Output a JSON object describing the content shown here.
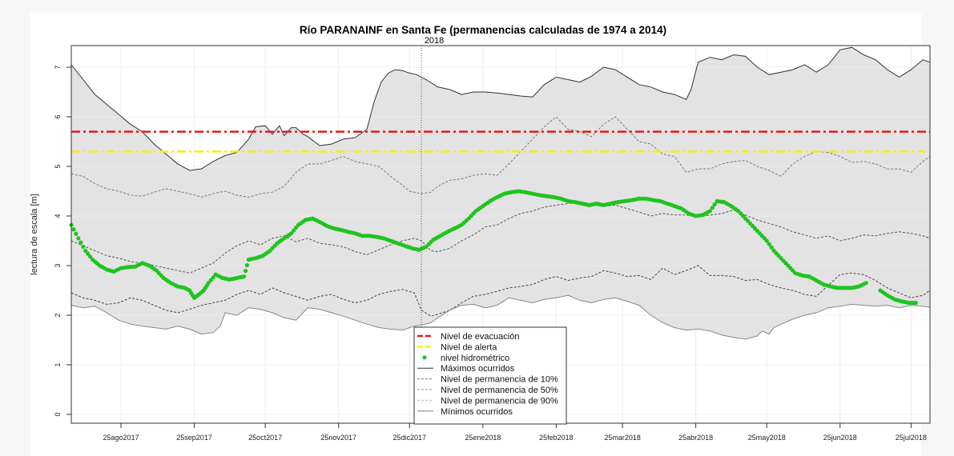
{
  "chart_data": {
    "type": "line",
    "title": "Río PARANAINF en Santa Fe (permanencias calculadas de 1974 a 2014)",
    "subtitle": "2018",
    "xlabel": "",
    "ylabel": "lectura de escala [m]",
    "x_unit": "days since 04ago2017",
    "xlim": [
      0,
      363
    ],
    "ylim": [
      -0.2,
      7.4
    ],
    "y_ticks": [
      0,
      1,
      2,
      3,
      4,
      5,
      6,
      7
    ],
    "x_ticks": [
      {
        "day": 21,
        "label": "25ago2017"
      },
      {
        "day": 52,
        "label": "25sep2017"
      },
      {
        "day": 82,
        "label": "25oct2017"
      },
      {
        "day": 113,
        "label": "25nov2017"
      },
      {
        "day": 143,
        "label": "25dic2017"
      },
      {
        "day": 174,
        "label": "25ene2018"
      },
      {
        "day": 205,
        "label": "25feb2018"
      },
      {
        "day": 233,
        "label": "25mar2018"
      },
      {
        "day": 264,
        "label": "25abr2018"
      },
      {
        "day": 294,
        "label": "25may2018"
      },
      {
        "day": 325,
        "label": "25jun2018"
      },
      {
        "day": 355,
        "label": "25jul2018"
      }
    ],
    "grid": true,
    "year_marker": {
      "day": 148,
      "label": "2018"
    },
    "thresholds": [
      {
        "name": "Nivel de evacuación",
        "value": 5.7,
        "color": "#e31a1c"
      },
      {
        "name": "Nivel de alerta",
        "value": 5.3,
        "color": "#f2f20a"
      }
    ],
    "series": [
      {
        "name": "Máximos ocurridos",
        "style": "solid",
        "color": "#333333",
        "x": [
          0,
          5,
          10,
          15,
          20,
          25,
          30,
          35,
          40,
          45,
          50,
          55,
          60,
          65,
          70,
          75,
          78,
          82,
          85,
          88,
          90,
          93,
          95,
          98,
          100,
          105,
          110,
          115,
          120,
          125,
          128,
          131,
          134,
          137,
          140,
          143,
          146,
          150,
          155,
          160,
          165,
          170,
          175,
          180,
          185,
          190,
          195,
          200,
          205,
          210,
          215,
          220,
          225,
          230,
          235,
          240,
          245,
          250,
          255,
          260,
          262,
          265,
          270,
          275,
          280,
          285,
          290,
          295,
          300,
          305,
          310,
          315,
          320,
          325,
          330,
          335,
          340,
          345,
          350,
          355,
          360,
          363
        ],
        "y": [
          7.05,
          6.75,
          6.45,
          6.25,
          6.05,
          5.85,
          5.7,
          5.45,
          5.25,
          5.05,
          4.92,
          4.95,
          5.1,
          5.22,
          5.28,
          5.55,
          5.8,
          5.82,
          5.65,
          5.82,
          5.62,
          5.78,
          5.78,
          5.65,
          5.6,
          5.42,
          5.45,
          5.55,
          5.58,
          5.75,
          6.3,
          6.7,
          6.88,
          6.95,
          6.93,
          6.88,
          6.85,
          6.75,
          6.6,
          6.55,
          6.45,
          6.5,
          6.5,
          6.48,
          6.45,
          6.42,
          6.4,
          6.65,
          6.8,
          6.75,
          6.7,
          6.82,
          7.0,
          6.95,
          6.8,
          6.65,
          6.6,
          6.5,
          6.45,
          6.35,
          6.55,
          7.1,
          7.2,
          7.15,
          7.25,
          7.22,
          7.0,
          6.85,
          6.9,
          6.95,
          7.05,
          6.9,
          7.05,
          7.35,
          7.4,
          7.25,
          7.15,
          6.95,
          6.8,
          6.95,
          7.15,
          7.1
        ]
      },
      {
        "name": "Nivel de permanencia de 10%",
        "style": "dashed",
        "color": "#7a7a7a",
        "x": [
          0,
          5,
          10,
          15,
          20,
          25,
          30,
          35,
          40,
          45,
          50,
          55,
          60,
          65,
          70,
          75,
          80,
          85,
          90,
          95,
          100,
          105,
          110,
          115,
          120,
          125,
          130,
          135,
          140,
          143,
          148,
          152,
          155,
          160,
          165,
          170,
          175,
          180,
          185,
          190,
          195,
          200,
          205,
          210,
          215,
          220,
          225,
          230,
          235,
          240,
          245,
          250,
          255,
          260,
          265,
          270,
          275,
          280,
          285,
          290,
          295,
          300,
          305,
          310,
          315,
          320,
          325,
          330,
          335,
          340,
          345,
          350,
          355,
          360,
          363
        ],
        "y": [
          4.85,
          4.8,
          4.65,
          4.55,
          4.5,
          4.42,
          4.4,
          4.48,
          4.55,
          4.5,
          4.45,
          4.38,
          4.45,
          4.5,
          4.42,
          4.38,
          4.45,
          4.48,
          4.6,
          4.88,
          5.05,
          5.05,
          5.12,
          5.2,
          5.1,
          5.05,
          5.0,
          4.8,
          4.62,
          4.5,
          4.45,
          4.48,
          4.6,
          4.72,
          4.75,
          4.82,
          4.85,
          4.82,
          5.05,
          5.3,
          5.55,
          5.8,
          6.0,
          5.75,
          5.7,
          5.6,
          5.85,
          6.0,
          5.75,
          5.5,
          5.45,
          5.25,
          5.2,
          4.88,
          4.95,
          4.95,
          5.05,
          5.1,
          5.12,
          5.0,
          4.92,
          4.8,
          5.05,
          5.2,
          5.3,
          5.28,
          5.2,
          5.08,
          5.1,
          5.05,
          4.95,
          4.95,
          4.88,
          5.1,
          5.2
        ]
      },
      {
        "name": "Nivel de permanencia de 50%",
        "style": "dashed",
        "color": "#555555",
        "x": [
          0,
          5,
          10,
          15,
          20,
          25,
          30,
          35,
          40,
          45,
          50,
          55,
          60,
          65,
          70,
          75,
          80,
          85,
          90,
          95,
          100,
          105,
          110,
          115,
          120,
          125,
          130,
          135,
          140,
          145,
          148,
          152,
          155,
          160,
          165,
          170,
          175,
          180,
          185,
          190,
          195,
          200,
          205,
          210,
          215,
          220,
          225,
          230,
          235,
          240,
          245,
          250,
          255,
          260,
          265,
          270,
          275,
          280,
          285,
          290,
          295,
          300,
          305,
          310,
          315,
          320,
          325,
          330,
          335,
          340,
          345,
          350,
          355,
          360,
          363
        ],
        "y": [
          3.5,
          3.4,
          3.3,
          3.2,
          3.15,
          3.08,
          3.05,
          3.0,
          2.95,
          2.9,
          2.85,
          2.95,
          3.05,
          3.25,
          3.4,
          3.5,
          3.42,
          3.55,
          3.6,
          3.48,
          3.55,
          3.45,
          3.42,
          3.38,
          3.28,
          3.22,
          3.32,
          3.42,
          3.5,
          3.55,
          3.5,
          3.3,
          3.28,
          3.35,
          3.5,
          3.62,
          3.78,
          3.82,
          3.95,
          4.05,
          4.1,
          4.18,
          4.22,
          4.25,
          4.28,
          4.22,
          4.2,
          4.22,
          4.15,
          4.08,
          4.0,
          4.05,
          4.02,
          4.02,
          3.98,
          4.02,
          4.05,
          4.12,
          4.02,
          3.92,
          3.85,
          3.78,
          3.68,
          3.62,
          3.55,
          3.6,
          3.5,
          3.55,
          3.62,
          3.6,
          3.65,
          3.68,
          3.65,
          3.6,
          3.55
        ]
      },
      {
        "name": "Nivel de permanencia de 90%",
        "style": "dashed",
        "color": "#444444",
        "x": [
          0,
          5,
          10,
          15,
          20,
          25,
          30,
          35,
          40,
          45,
          50,
          55,
          60,
          65,
          70,
          75,
          80,
          85,
          90,
          95,
          100,
          105,
          110,
          115,
          120,
          125,
          130,
          135,
          140,
          145,
          148,
          152,
          155,
          160,
          165,
          170,
          175,
          180,
          185,
          190,
          195,
          200,
          205,
          210,
          215,
          220,
          225,
          230,
          235,
          240,
          245,
          250,
          255,
          260,
          265,
          270,
          275,
          280,
          285,
          290,
          295,
          300,
          305,
          310,
          315,
          320,
          325,
          330,
          335,
          340,
          345,
          350,
          355,
          360,
          363
        ],
        "y": [
          2.45,
          2.35,
          2.3,
          2.22,
          2.25,
          2.35,
          2.3,
          2.2,
          2.1,
          2.05,
          2.12,
          2.2,
          2.25,
          2.3,
          2.42,
          2.5,
          2.42,
          2.55,
          2.45,
          2.38,
          2.3,
          2.38,
          2.42,
          2.32,
          2.25,
          2.3,
          2.42,
          2.48,
          2.52,
          2.45,
          2.1,
          1.98,
          2.02,
          2.1,
          2.25,
          2.38,
          2.42,
          2.48,
          2.55,
          2.58,
          2.62,
          2.72,
          2.78,
          2.7,
          2.75,
          2.78,
          2.9,
          2.85,
          2.78,
          2.8,
          2.72,
          2.95,
          2.82,
          2.9,
          3.0,
          2.8,
          2.8,
          2.78,
          2.7,
          2.72,
          2.62,
          2.55,
          2.5,
          2.42,
          2.38,
          2.6,
          2.82,
          2.85,
          2.82,
          2.7,
          2.55,
          2.45,
          2.35,
          2.4,
          2.5
        ]
      },
      {
        "name": "Mínimos ocurridos",
        "style": "solid",
        "color": "#888888",
        "x": [
          0,
          5,
          10,
          15,
          20,
          25,
          30,
          35,
          40,
          45,
          50,
          55,
          60,
          63,
          65,
          70,
          75,
          80,
          85,
          90,
          95,
          100,
          105,
          110,
          115,
          120,
          125,
          130,
          135,
          140,
          145,
          148,
          152,
          155,
          160,
          165,
          170,
          175,
          180,
          185,
          190,
          195,
          200,
          205,
          210,
          215,
          220,
          225,
          230,
          235,
          240,
          245,
          250,
          255,
          260,
          265,
          270,
          275,
          280,
          285,
          290,
          292,
          295,
          297,
          300,
          305,
          310,
          315,
          320,
          325,
          330,
          335,
          340,
          345,
          350,
          355,
          360,
          363
        ],
        "y": [
          2.2,
          2.15,
          2.18,
          2.05,
          1.9,
          1.82,
          1.78,
          1.75,
          1.72,
          1.78,
          1.72,
          1.62,
          1.65,
          1.78,
          2.05,
          2.0,
          2.15,
          2.12,
          2.05,
          1.95,
          1.9,
          2.15,
          2.12,
          2.05,
          1.98,
          1.9,
          1.82,
          1.75,
          1.72,
          1.7,
          1.78,
          1.8,
          1.85,
          1.95,
          2.1,
          2.2,
          2.22,
          2.15,
          2.2,
          2.35,
          2.3,
          2.25,
          2.32,
          2.35,
          2.4,
          2.3,
          2.25,
          2.32,
          2.35,
          2.28,
          2.2,
          2.0,
          1.85,
          1.75,
          1.7,
          1.72,
          1.68,
          1.6,
          1.55,
          1.52,
          1.58,
          1.68,
          1.62,
          1.75,
          1.82,
          1.92,
          2.0,
          2.05,
          2.15,
          2.18,
          2.22,
          2.2,
          2.18,
          2.2,
          2.15,
          2.2,
          2.18,
          2.16
        ]
      }
    ],
    "observed": {
      "name": "nivel hidrométrico",
      "color": "#1fc41f",
      "x": [
        0,
        3,
        6,
        9,
        12,
        15,
        18,
        21,
        24,
        27,
        30,
        33,
        36,
        39,
        42,
        45,
        48,
        50,
        52,
        54,
        56,
        58,
        61,
        64,
        67,
        70,
        73,
        75,
        78,
        81,
        84,
        87,
        90,
        93,
        96,
        99,
        102,
        105,
        108,
        111,
        114,
        117,
        120,
        123,
        126,
        129,
        132,
        135,
        138,
        141,
        144,
        147,
        150,
        153,
        156,
        159,
        162,
        165,
        168,
        171,
        174,
        177,
        180,
        183,
        186,
        189,
        192,
        195,
        198,
        201,
        204,
        207,
        210,
        213,
        216,
        219,
        222,
        225,
        228,
        231,
        234,
        237,
        240,
        243,
        246,
        249,
        252,
        255,
        258,
        261,
        264,
        267,
        270,
        273,
        276,
        279,
        282,
        285,
        288,
        291,
        294,
        297,
        300,
        303,
        306,
        309,
        312,
        315,
        318,
        321,
        324,
        327,
        330,
        333,
        336,
        339,
        342,
        345,
        348,
        351,
        354,
        357
      ],
      "y": [
        3.82,
        3.55,
        3.3,
        3.12,
        3.0,
        2.92,
        2.88,
        2.95,
        2.97,
        2.98,
        3.05,
        3.0,
        2.9,
        2.75,
        2.65,
        2.58,
        2.55,
        2.5,
        2.35,
        2.42,
        2.5,
        2.65,
        2.82,
        2.75,
        2.72,
        2.75,
        2.78,
        3.12,
        3.15,
        3.2,
        3.3,
        3.45,
        3.55,
        3.65,
        3.82,
        3.92,
        3.95,
        3.88,
        3.8,
        3.75,
        3.72,
        3.68,
        3.65,
        3.6,
        3.6,
        3.58,
        3.55,
        3.5,
        3.45,
        3.4,
        3.35,
        3.32,
        3.38,
        3.52,
        3.6,
        3.68,
        3.75,
        3.82,
        3.95,
        4.1,
        4.2,
        4.3,
        4.38,
        4.45,
        4.48,
        4.5,
        4.48,
        4.45,
        4.42,
        4.4,
        4.38,
        4.35,
        4.3,
        4.28,
        4.25,
        4.22,
        4.25,
        4.22,
        4.25,
        4.28,
        4.3,
        4.32,
        4.35,
        4.35,
        4.32,
        4.3,
        4.25,
        4.2,
        4.15,
        4.05,
        4.0,
        4.02,
        4.1,
        4.3,
        4.28,
        4.2,
        4.1,
        3.95,
        3.8,
        3.65,
        3.5,
        3.3,
        3.15,
        3.0,
        2.85,
        2.8,
        2.78,
        2.7,
        2.62,
        2.58,
        2.55,
        2.55,
        2.55,
        2.58,
        2.65,
        null,
        2.5,
        2.4,
        2.32,
        2.28,
        2.25,
        2.25
      ]
    },
    "legend": {
      "placement": "bottom-center",
      "entries": [
        "Nivel de evacuación",
        "Nivel de alerta",
        "nivel hidrométrico",
        "Máximos ocurridos",
        "Nivel de permanencia de 10%",
        "Nivel de permanencia de 50%",
        "Nivel de permanencia de 90%",
        "Mínimos ocurridos"
      ]
    }
  }
}
